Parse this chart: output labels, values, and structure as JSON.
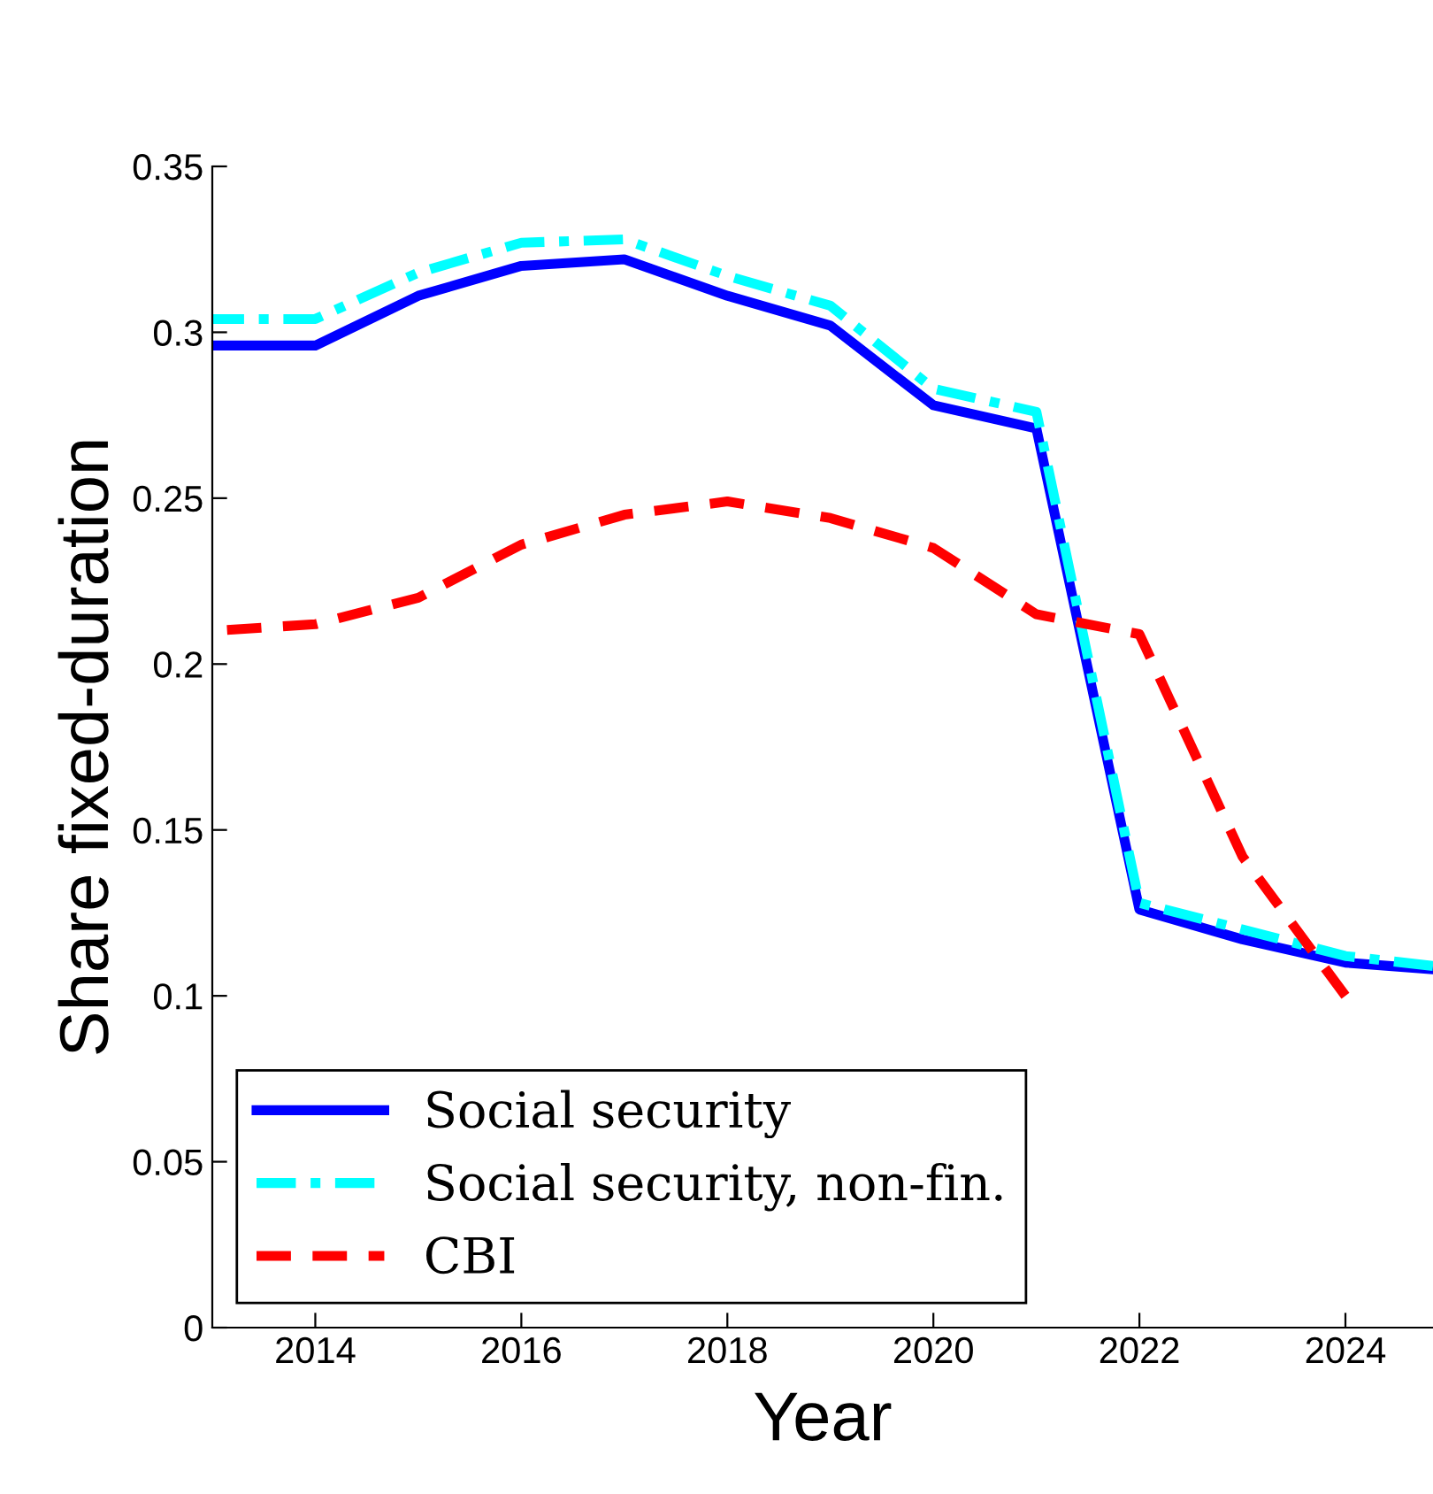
{
  "chart_data": {
    "type": "line",
    "xlabel": "Year",
    "ylabel": "Share fixed-duration",
    "x": [
      2013,
      2014,
      2015,
      2016,
      2017,
      2018,
      2019,
      2020,
      2021,
      2022,
      2023,
      2024,
      2024.85
    ],
    "series": [
      {
        "name": "Social security",
        "color": "#0000ff",
        "line_style": "solid",
        "values": [
          0.296,
          0.296,
          0.311,
          0.32,
          0.322,
          0.311,
          0.302,
          0.278,
          0.271,
          0.126,
          0.117,
          0.11,
          0.108
        ]
      },
      {
        "name": "Social security, non-fin.",
        "color": "#00ffff",
        "line_style": "dashdot",
        "values": [
          0.304,
          0.304,
          0.318,
          0.327,
          0.328,
          0.317,
          0.308,
          0.283,
          0.276,
          0.128,
          0.12,
          0.112,
          0.109
        ]
      },
      {
        "name": "CBI",
        "color": "#ff0000",
        "line_style": "dashed",
        "values": [
          0.21,
          0.212,
          0.22,
          0.236,
          0.245,
          0.249,
          0.244,
          0.235,
          0.215,
          0.209,
          0.142,
          0.1,
          null
        ]
      }
    ],
    "xlim": [
      2013,
      2024.85
    ],
    "xticks": [
      2014,
      2016,
      2018,
      2020,
      2022,
      2024
    ],
    "ylim": [
      0,
      0.35
    ],
    "yticks": [
      0,
      0.05,
      0.1,
      0.15,
      0.2,
      0.25,
      0.3,
      0.35
    ],
    "grid": false,
    "legend": "bottom left",
    "marker": "none"
  }
}
